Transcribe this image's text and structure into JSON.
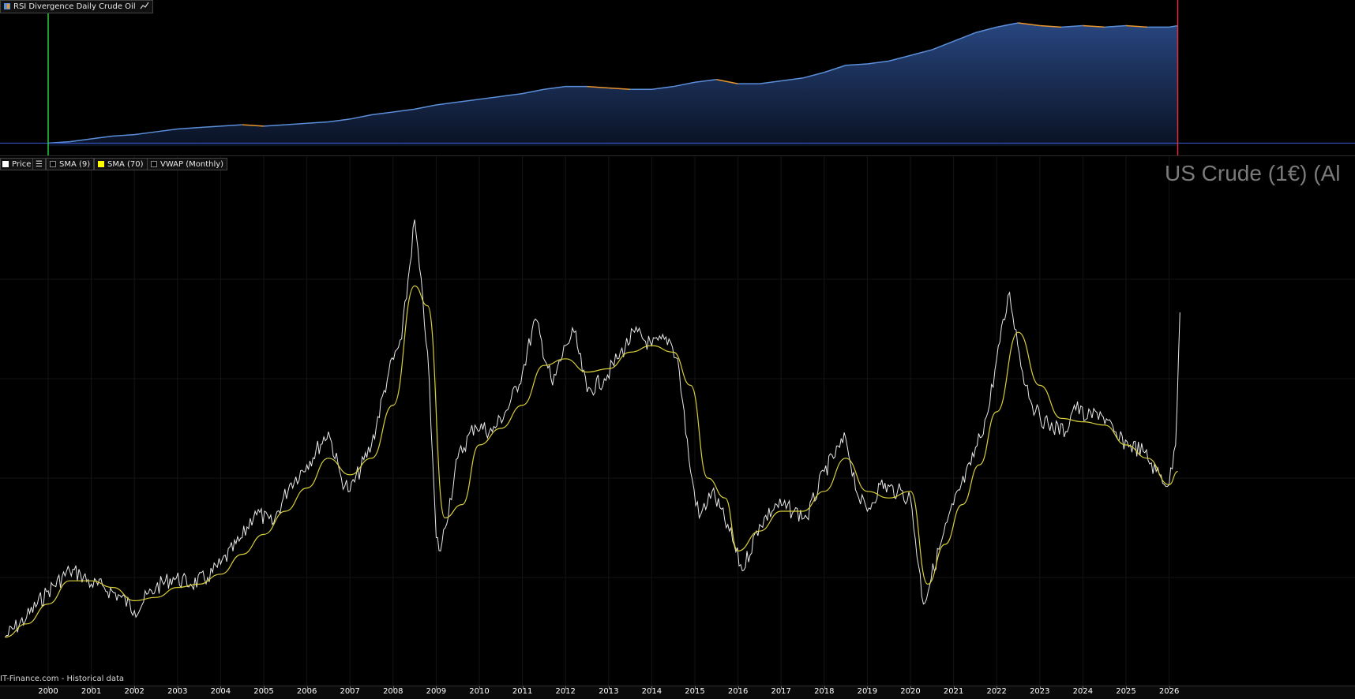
{
  "top_panel": {
    "title": "RSI Divergence Daily Crude Oil",
    "icon": "equity-curve-icon"
  },
  "main_panel": {
    "title": "US Crude (1€) (Al",
    "source_note": "IT-Finance.com - Historical data",
    "legend": [
      {
        "label": "Price",
        "color": "#ffffff",
        "checked": true
      },
      {
        "label": "SMA (9)",
        "color": "#000000",
        "checked": false
      },
      {
        "label": "SMA (70)",
        "color": "#ffff00",
        "checked": true
      },
      {
        "label": "VWAP (Monthly)",
        "color": "#000000",
        "checked": false
      }
    ]
  },
  "colors": {
    "price": "#e8e8e8",
    "sma70": "#d9cf3a",
    "equity_up": "#5b8fd9",
    "equity_down": "#e8962f",
    "signal_buy": "#6fa3f0",
    "signal_sell": "#f2a33a",
    "start_marker": "#2ecc40",
    "end_marker": "#e0303a"
  },
  "chart_data": [
    {
      "type": "area",
      "title": "RSI Divergence Daily Crude Oil",
      "x_unit": "year",
      "x": [
        2000.0,
        2000.5,
        2001.0,
        2001.5,
        2002.0,
        2002.5,
        2003.0,
        2003.5,
        2004.0,
        2004.5,
        2005.0,
        2005.5,
        2006.0,
        2006.5,
        2007.0,
        2007.5,
        2008.0,
        2008.5,
        2009.0,
        2009.5,
        2010.0,
        2010.5,
        2011.0,
        2011.5,
        2012.0,
        2012.5,
        2013.0,
        2013.5,
        2014.0,
        2014.5,
        2015.0,
        2015.5,
        2016.0,
        2016.5,
        2017.0,
        2017.5,
        2018.0,
        2018.5,
        2019.0,
        2019.5,
        2020.0,
        2020.5,
        2021.0,
        2021.5,
        2022.0,
        2022.5,
        2023.0,
        2023.5,
        2024.0,
        2024.5,
        2025.0,
        2025.5,
        2026.0,
        2026.2
      ],
      "values": [
        0,
        1,
        3,
        5,
        6,
        8,
        10,
        11,
        12,
        13,
        12,
        13,
        14,
        15,
        17,
        20,
        22,
        24,
        27,
        29,
        31,
        33,
        35,
        38,
        40,
        40,
        39,
        38,
        38,
        40,
        43,
        45,
        42,
        42,
        44,
        46,
        50,
        55,
        56,
        58,
        62,
        66,
        72,
        78,
        82,
        85,
        83,
        82,
        83,
        82,
        83,
        82,
        82,
        83
      ],
      "ylim": [
        -2,
        90
      ]
    },
    {
      "type": "line",
      "title": "US Crude (1€) (Al",
      "x_unit": "year",
      "xticks": [
        "2000",
        "2001",
        "2002",
        "2003",
        "2004",
        "2005",
        "2006",
        "2007",
        "2008",
        "2009",
        "2010",
        "2011",
        "2012",
        "2013",
        "2014",
        "2015",
        "2016",
        "2017",
        "2018",
        "2019",
        "2020",
        "2021",
        "2022",
        "2023",
        "2024",
        "2025",
        "2026"
      ],
      "series": [
        {
          "name": "Price",
          "x": [
            1999.0,
            1999.5,
            2000.0,
            2000.5,
            2000.75,
            2001.0,
            2001.3,
            2001.7,
            2002.0,
            2002.5,
            2002.9,
            2003.3,
            2003.7,
            2004.0,
            2004.5,
            2004.8,
            2005.2,
            2005.6,
            2006.0,
            2006.5,
            2006.8,
            2007.0,
            2007.5,
            2007.9,
            2008.2,
            2008.5,
            2008.8,
            2009.0,
            2009.1,
            2009.5,
            2009.9,
            2010.3,
            2010.7,
            2011.0,
            2011.3,
            2011.7,
            2012.0,
            2012.2,
            2012.5,
            2012.9,
            2013.2,
            2013.6,
            2014.0,
            2014.4,
            2014.6,
            2014.9,
            2015.1,
            2015.4,
            2015.8,
            2016.1,
            2016.5,
            2016.9,
            2017.3,
            2017.6,
            2018.0,
            2018.5,
            2018.8,
            2019.0,
            2019.3,
            2019.7,
            2020.0,
            2020.3,
            2020.7,
            2021.0,
            2021.4,
            2021.8,
            2022.0,
            2022.3,
            2022.6,
            2022.9,
            2023.2,
            2023.6,
            2023.8,
            2024.1,
            2024.4,
            2024.8,
            2025.1,
            2025.4,
            2025.7,
            2026.0,
            2026.15,
            2026.25
          ],
          "y": [
            12,
            18,
            26,
            32,
            31,
            28,
            27,
            24,
            20,
            27,
            30,
            28,
            30,
            34,
            42,
            50,
            46,
            58,
            64,
            74,
            60,
            56,
            70,
            92,
            102,
            138,
            98,
            42,
            38,
            66,
            76,
            74,
            82,
            92,
            108,
            88,
            100,
            104,
            86,
            90,
            96,
            104,
            100,
            102,
            96,
            62,
            48,
            56,
            44,
            32,
            46,
            52,
            50,
            48,
            62,
            72,
            54,
            50,
            58,
            56,
            54,
            22,
            40,
            52,
            64,
            80,
            96,
            116,
            92,
            80,
            76,
            74,
            82,
            78,
            80,
            72,
            70,
            68,
            62,
            58,
            70,
            110
          ],
          "color": "#e8e8e8"
        },
        {
          "name": "SMA (70)",
          "x": [
            1999.0,
            1999.5,
            2000.0,
            2000.5,
            2001.0,
            2001.5,
            2002.0,
            2002.5,
            2003.0,
            2003.5,
            2004.0,
            2004.5,
            2005.0,
            2005.5,
            2006.0,
            2006.5,
            2007.0,
            2007.5,
            2008.0,
            2008.5,
            2008.8,
            2009.2,
            2009.6,
            2010.0,
            2010.5,
            2011.0,
            2011.5,
            2012.0,
            2012.5,
            2013.0,
            2013.5,
            2014.0,
            2014.5,
            2014.9,
            2015.3,
            2015.7,
            2016.0,
            2016.5,
            2017.0,
            2017.5,
            2018.0,
            2018.5,
            2019.0,
            2019.5,
            2020.0,
            2020.4,
            2020.8,
            2021.2,
            2021.6,
            2022.0,
            2022.5,
            2023.0,
            2023.5,
            2024.0,
            2024.5,
            2025.0,
            2025.5,
            2026.0,
            2026.2
          ],
          "y": [
            12,
            16,
            22,
            29,
            29,
            27,
            23,
            24,
            27,
            28,
            31,
            37,
            43,
            50,
            57,
            66,
            61,
            66,
            82,
            118,
            112,
            48,
            52,
            70,
            75,
            82,
            94,
            96,
            92,
            93,
            98,
            100,
            98,
            88,
            60,
            54,
            38,
            44,
            50,
            50,
            56,
            66,
            56,
            54,
            56,
            28,
            40,
            52,
            64,
            80,
            104,
            88,
            78,
            77,
            76,
            70,
            66,
            58,
            62
          ],
          "color": "#d9cf3a"
        }
      ],
      "ylim": [
        0,
        150
      ]
    }
  ]
}
